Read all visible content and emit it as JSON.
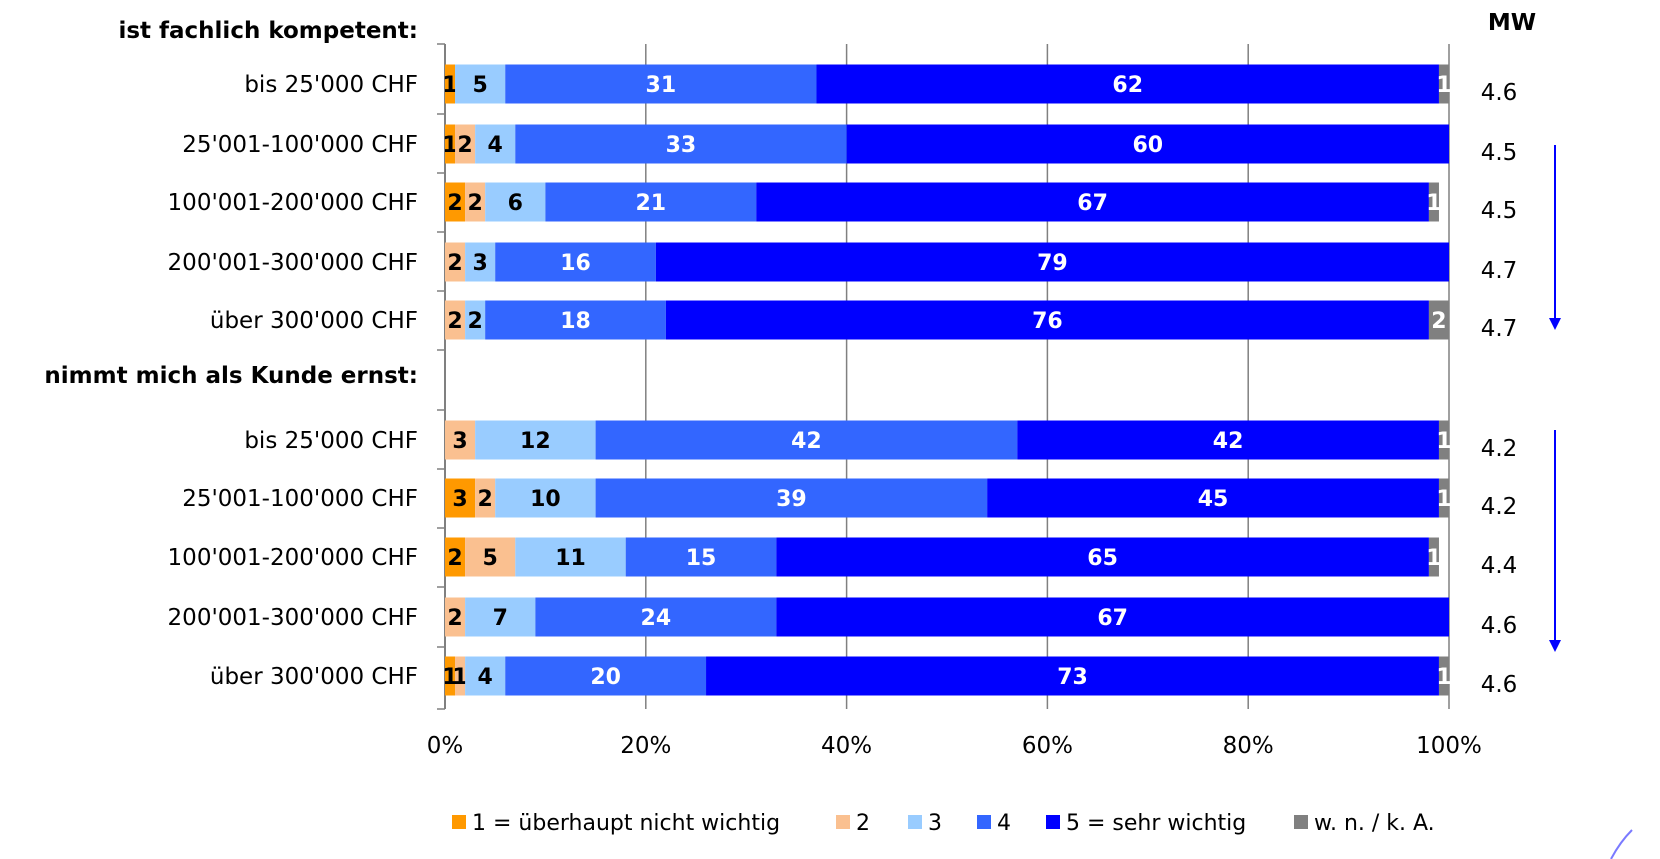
{
  "chart_data": {
    "type": "bar",
    "orientation": "horizontal",
    "stacked": "percent",
    "mw_header": "MW",
    "x_ticks": [
      "0%",
      "20%",
      "40%",
      "60%",
      "80%",
      "100%"
    ],
    "xlim": [
      0,
      100
    ],
    "legend_position": "bottom",
    "legend": [
      {
        "key": "s1",
        "label": "1 = überhaupt nicht wichtig",
        "color": "#FF9900"
      },
      {
        "key": "s2",
        "label": "2",
        "color": "#FAC090"
      },
      {
        "key": "s3",
        "label": "3",
        "color": "#99CCFF"
      },
      {
        "key": "s4",
        "label": "4",
        "color": "#3366FF"
      },
      {
        "key": "s5",
        "label": "5 = sehr wichtig",
        "color": "#0000FF"
      },
      {
        "key": "s6",
        "label": "w. n. / k. A.",
        "color": "#808080"
      }
    ],
    "groups": [
      {
        "title": "ist fachlich kompetent:",
        "rows": [
          {
            "category": "bis 25'000 CHF",
            "values": [
              1,
              0,
              5,
              31,
              62,
              1
            ],
            "mw": "4.6"
          },
          {
            "category": "25'001-100'000 CHF",
            "values": [
              1,
              2,
              4,
              33,
              60,
              0
            ],
            "mw": "4.5"
          },
          {
            "category": "100'001-200'000 CHF",
            "values": [
              2,
              2,
              6,
              21,
              67,
              1
            ],
            "mw": "4.5"
          },
          {
            "category": "200'001-300'000 CHF",
            "values": [
              0,
              2,
              3,
              16,
              79,
              0
            ],
            "mw": "4.7"
          },
          {
            "category": "über 300'000 CHF",
            "values": [
              0,
              2,
              2,
              18,
              76,
              2
            ],
            "mw": "4.7"
          }
        ]
      },
      {
        "title": "nimmt mich als Kunde ernst:",
        "rows": [
          {
            "category": "bis 25'000 CHF",
            "values": [
              0,
              3,
              12,
              42,
              42,
              1
            ],
            "mw": "4.2"
          },
          {
            "category": "25'001-100'000 CHF",
            "values": [
              3,
              2,
              10,
              39,
              45,
              1
            ],
            "mw": "4.2"
          },
          {
            "category": "100'001-200'000 CHF",
            "values": [
              2,
              5,
              11,
              15,
              65,
              1
            ],
            "mw": "4.4"
          },
          {
            "category": "200'001-300'000 CHF",
            "values": [
              0,
              2,
              7,
              24,
              67,
              0
            ],
            "mw": "4.6"
          },
          {
            "category": "über 300'000 CHF",
            "values": [
              1,
              1,
              4,
              20,
              73,
              1
            ],
            "mw": "4.6"
          }
        ]
      }
    ],
    "colors": {
      "grid": "#808080",
      "axis": "#808080",
      "trend_arrow": "#0000FF"
    }
  }
}
